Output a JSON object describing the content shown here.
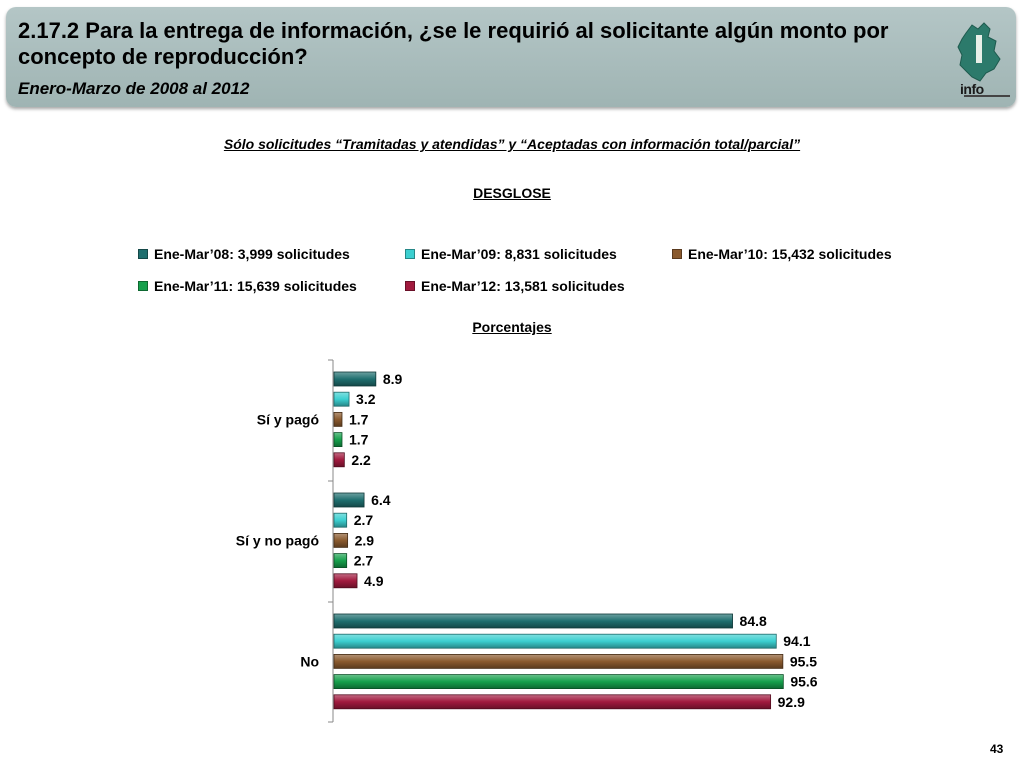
{
  "header": {
    "title": "2.17.2 Para la entrega de información, ¿se le requirió al solicitante algún monto por concepto de reproducción?",
    "subtitle": "Enero-Marzo de 2008 al 2012",
    "logo_text": "info"
  },
  "scope_note": "Sólo solicitudes “Tramitadas y atendidas” y “Aceptadas con información total/parcial”",
  "breakdown_label": "DESGLOSE",
  "units_label": "Porcentajes",
  "page_number": "43",
  "colors": {
    "header_bg": "#a9bcbb",
    "series": [
      "#1f6f6f",
      "#3ccfd0",
      "#8a5a2e",
      "#16a04c",
      "#a11a3e"
    ]
  },
  "chart_data": {
    "type": "bar",
    "orientation": "horizontal",
    "categories": [
      "Sí y pagó",
      "Sí y no pagó",
      "No"
    ],
    "series": [
      {
        "name": "Ene-Mar’08: 3,999 solicitudes",
        "values": [
          8.9,
          6.4,
          84.8
        ]
      },
      {
        "name": "Ene-Mar’09: 8,831 solicitudes",
        "values": [
          3.2,
          2.7,
          94.1
        ]
      },
      {
        "name": "Ene-Mar’10: 15,432 solicitudes",
        "values": [
          1.7,
          2.9,
          95.5
        ]
      },
      {
        "name": "Ene-Mar’11: 15,639 solicitudes",
        "values": [
          1.7,
          2.7,
          95.6
        ]
      },
      {
        "name": "Ene-Mar’12: 13,581 solicitudes",
        "values": [
          2.2,
          4.9,
          92.9
        ]
      }
    ],
    "xlim": [
      0,
      100
    ],
    "grid": false,
    "legend_position": "top"
  }
}
